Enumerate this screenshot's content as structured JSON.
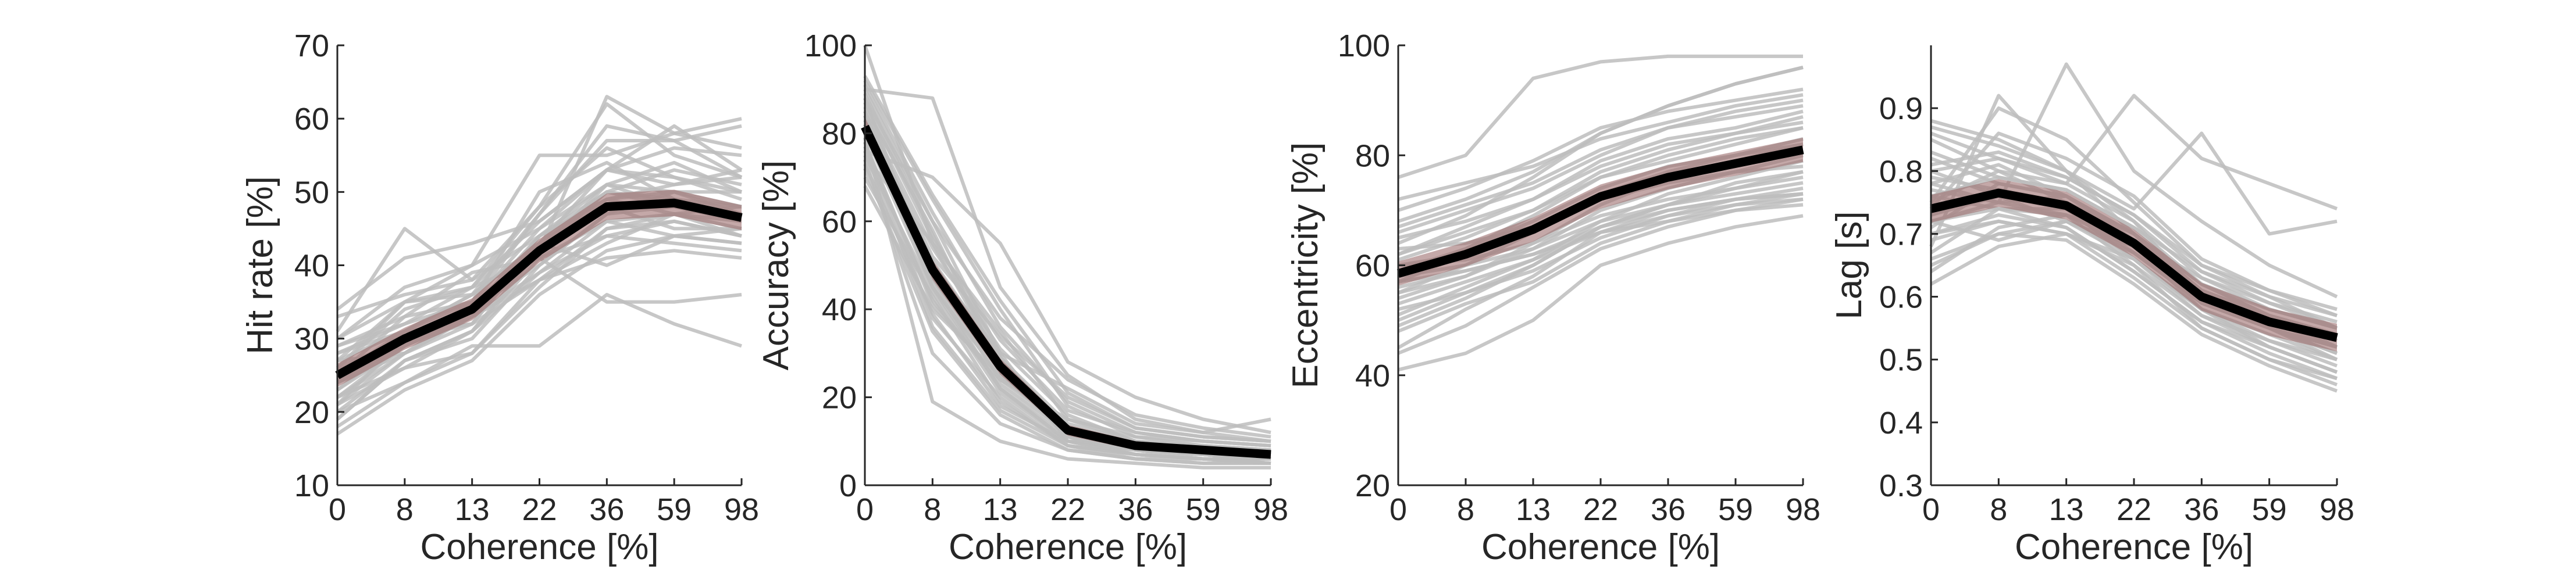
{
  "colors": {
    "subject_lines": "#bdbdbd",
    "mean_line": "#000000",
    "error_band": "#9c6e6e",
    "axis": "#262626"
  },
  "chart_data": [
    {
      "type": "line",
      "xlabel": "Coherence [%]",
      "ylabel": "Hit rate [%]",
      "categories": [
        "0",
        "8",
        "13",
        "22",
        "36",
        "59",
        "98"
      ],
      "ylim": [
        10,
        70
      ],
      "yticks": [
        10,
        20,
        30,
        40,
        50,
        60,
        70
      ],
      "mean": [
        25,
        30,
        34,
        42,
        48,
        48.5,
        46.5
      ],
      "error": [
        1.6,
        1.5,
        1.5,
        1.6,
        1.8,
        1.8,
        1.7
      ],
      "subjects": [
        [
          20,
          27,
          30,
          40,
          47,
          50,
          50
        ],
        [
          22,
          29,
          33,
          44,
          51,
          50,
          48
        ],
        [
          27,
          31,
          36,
          43,
          49,
          50,
          47
        ],
        [
          30,
          35,
          37,
          48,
          56,
          52,
          50
        ],
        [
          18,
          24,
          28,
          37,
          45,
          47,
          45
        ],
        [
          24,
          31,
          35,
          47,
          59,
          57,
          52
        ],
        [
          21,
          26,
          31,
          39,
          46,
          44,
          43
        ],
        [
          28,
          32,
          37,
          41,
          44,
          46,
          44
        ],
        [
          26,
          30,
          33,
          38,
          43,
          47,
          48
        ],
        [
          23,
          29,
          35,
          45,
          53,
          56,
          55
        ],
        [
          19,
          27,
          31,
          42,
          50,
          49,
          47
        ],
        [
          25,
          31,
          32,
          44,
          50,
          53,
          51
        ],
        [
          29,
          33,
          35,
          42,
          48,
          45,
          45
        ],
        [
          22,
          28,
          34,
          40,
          47,
          48,
          46
        ],
        [
          30,
          37,
          40,
          45,
          51,
          48,
          46
        ],
        [
          26,
          34,
          37,
          46,
          53,
          52,
          49
        ],
        [
          24,
          28,
          33,
          39,
          44,
          43,
          42
        ],
        [
          33,
          36,
          38,
          44,
          49,
          47,
          44
        ],
        [
          17,
          23,
          27,
          36,
          42,
          44,
          43
        ],
        [
          31,
          45,
          38,
          48,
          62,
          55,
          52
        ],
        [
          21,
          30,
          34,
          43,
          50,
          48,
          47
        ],
        [
          28,
          31,
          36,
          47,
          57,
          57,
          59
        ],
        [
          20,
          24,
          29,
          29,
          36,
          32,
          29
        ],
        [
          25,
          33,
          39,
          41,
          35,
          35,
          36
        ],
        [
          24,
          29,
          33,
          42,
          63,
          58,
          56
        ],
        [
          27,
          35,
          36,
          43,
          53,
          59,
          53
        ],
        [
          23,
          30,
          32,
          43,
          40,
          44,
          45
        ],
        [
          19,
          27,
          31,
          41,
          46,
          47,
          46
        ],
        [
          29,
          32,
          35,
          50,
          54,
          49,
          48
        ],
        [
          26,
          35,
          40,
          55,
          55,
          58,
          60
        ],
        [
          22,
          26,
          28,
          38,
          41,
          42,
          41
        ],
        [
          34,
          41,
          43,
          46,
          53,
          51,
          53
        ],
        [
          24,
          30,
          34,
          44,
          49,
          51,
          52
        ],
        [
          27,
          28,
          32,
          38,
          45,
          46,
          44
        ],
        [
          21,
          28,
          33,
          42,
          51,
          54,
          50
        ]
      ]
    },
    {
      "type": "line",
      "xlabel": "Coherence [%]",
      "ylabel": "Accuracy [%]",
      "categories": [
        "0",
        "8",
        "13",
        "22",
        "36",
        "59",
        "98"
      ],
      "ylim": [
        0,
        100
      ],
      "yticks": [
        0,
        20,
        40,
        60,
        80,
        100
      ],
      "mean": [
        81.5,
        49,
        27,
        12.5,
        9,
        8,
        7
      ],
      "error": [
        2.2,
        2.2,
        1.8,
        1.2,
        1,
        0.8,
        0.8
      ],
      "subjects": [
        [
          82,
          45,
          25,
          12,
          8,
          7,
          6
        ],
        [
          75,
          55,
          35,
          15,
          10,
          8,
          8
        ],
        [
          90,
          60,
          30,
          10,
          9,
          7,
          6
        ],
        [
          68,
          40,
          25,
          13,
          8,
          7,
          7
        ],
        [
          85,
          50,
          26,
          11,
          8,
          6,
          6
        ],
        [
          92,
          65,
          40,
          18,
          11,
          9,
          8
        ],
        [
          78,
          38,
          20,
          9,
          7,
          6,
          5
        ],
        [
          100,
          55,
          28,
          12,
          9,
          8,
          7
        ],
        [
          88,
          47,
          24,
          15,
          11,
          10,
          9
        ],
        [
          72,
          35,
          16,
          8,
          6,
          5,
          5
        ],
        [
          84,
          52,
          34,
          20,
          13,
          11,
          10
        ],
        [
          80,
          45,
          22,
          10,
          7,
          6,
          6
        ],
        [
          76,
          70,
          55,
          28,
          20,
          15,
          12
        ],
        [
          86,
          58,
          27,
          11,
          8,
          7,
          6
        ],
        [
          74,
          30,
          14,
          8,
          6,
          5,
          5
        ],
        [
          90,
          88,
          45,
          25,
          15,
          12,
          10
        ],
        [
          82,
          48,
          27,
          13,
          9,
          8,
          7
        ],
        [
          70,
          43,
          19,
          9,
          6,
          6,
          5
        ],
        [
          87,
          56,
          33,
          17,
          12,
          10,
          9
        ],
        [
          79,
          19,
          10,
          6,
          5,
          4,
          4
        ],
        [
          83,
          51,
          29,
          14,
          10,
          9,
          8
        ],
        [
          77,
          42,
          23,
          12,
          8,
          7,
          6
        ],
        [
          91,
          62,
          36,
          19,
          12,
          10,
          9
        ],
        [
          81,
          46,
          22,
          11,
          7,
          6,
          5
        ],
        [
          85,
          54,
          31,
          16,
          10,
          8,
          7
        ],
        [
          73,
          39,
          18,
          10,
          7,
          6,
          6
        ],
        [
          89,
          57,
          29,
          13,
          9,
          8,
          7
        ],
        [
          80,
          50,
          30,
          22,
          14,
          12,
          15
        ],
        [
          75,
          44,
          21,
          10,
          8,
          7,
          6
        ],
        [
          88,
          60,
          38,
          24,
          16,
          13,
          11
        ],
        [
          84,
          47,
          26,
          12,
          9,
          7,
          6
        ],
        [
          78,
          41,
          24,
          13,
          10,
          8,
          7
        ],
        [
          93,
          66,
          42,
          21,
          13,
          11,
          10
        ],
        [
          76,
          36,
          17,
          9,
          7,
          6,
          5
        ]
      ]
    },
    {
      "type": "line",
      "xlabel": "Coherence [%]",
      "ylabel": "Eccentricity [%]",
      "categories": [
        "0",
        "8",
        "13",
        "22",
        "36",
        "59",
        "98"
      ],
      "ylim": [
        20,
        100
      ],
      "yticks": [
        20,
        40,
        60,
        80,
        100
      ],
      "mean": [
        58.5,
        62,
        66.5,
        72.5,
        76,
        78.5,
        81
      ],
      "error": [
        2.2,
        2.2,
        2.2,
        2.2,
        2.2,
        2.2,
        2.2
      ],
      "subjects": [
        [
          41,
          44,
          50,
          60,
          64,
          67,
          69
        ],
        [
          45,
          52,
          58,
          66,
          70,
          72,
          73
        ],
        [
          50,
          55,
          60,
          67,
          71,
          75,
          77
        ],
        [
          55,
          58,
          63,
          70,
          74,
          77,
          80
        ],
        [
          60,
          62,
          66,
          72,
          76,
          79,
          82
        ],
        [
          62,
          66,
          70,
          76,
          79,
          82,
          85
        ],
        [
          65,
          68,
          72,
          78,
          82,
          84,
          86
        ],
        [
          70,
          74,
          79,
          85,
          88,
          90,
          92
        ],
        [
          76,
          80,
          94,
          97,
          98,
          98,
          98
        ],
        [
          68,
          72,
          77,
          84,
          89,
          93,
          96
        ],
        [
          58,
          60,
          63,
          68,
          71,
          73,
          75
        ],
        [
          53,
          57,
          61,
          66,
          69,
          72,
          74
        ],
        [
          48,
          53,
          57,
          64,
          68,
          71,
          73
        ],
        [
          57,
          62,
          67,
          73,
          76,
          79,
          81
        ],
        [
          63,
          64,
          67,
          72,
          75,
          77,
          78
        ],
        [
          59,
          63,
          69,
          76,
          80,
          83,
          85
        ],
        [
          52,
          55,
          59,
          65,
          69,
          71,
          72
        ],
        [
          66,
          70,
          74,
          80,
          85,
          88,
          90
        ],
        [
          56,
          59,
          62,
          67,
          70,
          72,
          73
        ],
        [
          61,
          65,
          70,
          77,
          81,
          84,
          87
        ],
        [
          44,
          49,
          56,
          63,
          67,
          70,
          72
        ],
        [
          64,
          69,
          76,
          84,
          89,
          93,
          96
        ],
        [
          54,
          58,
          64,
          71,
          76,
          79,
          81
        ],
        [
          60,
          61,
          64,
          69,
          72,
          74,
          76
        ],
        [
          58,
          63,
          68,
          74,
          78,
          80,
          83
        ],
        [
          51,
          56,
          61,
          68,
          73,
          76,
          79
        ],
        [
          67,
          71,
          75,
          81,
          85,
          87,
          89
        ],
        [
          55,
          60,
          66,
          73,
          77,
          80,
          82
        ],
        [
          62,
          67,
          72,
          79,
          83,
          85,
          88
        ],
        [
          49,
          54,
          60,
          67,
          71,
          74,
          77
        ],
        [
          57,
          59,
          62,
          66,
          68,
          70,
          71
        ],
        [
          72,
          75,
          78,
          83,
          86,
          89,
          91
        ]
      ]
    },
    {
      "type": "line",
      "xlabel": "Coherence [%]",
      "ylabel": "Lag [s]",
      "categories": [
        "0",
        "8",
        "13",
        "22",
        "36",
        "59",
        "98"
      ],
      "ylim": [
        0.3,
        1.0
      ],
      "yticks": [
        0.3,
        0.4,
        0.5,
        0.6,
        0.7,
        0.8,
        0.9
      ],
      "mean": [
        0.74,
        0.765,
        0.745,
        0.685,
        0.6,
        0.56,
        0.535
      ],
      "error": [
        0.022,
        0.022,
        0.022,
        0.022,
        0.022,
        0.022,
        0.022
      ],
      "subjects": [
        [
          0.88,
          0.85,
          0.8,
          0.72,
          0.6,
          0.55,
          0.5
        ],
        [
          0.82,
          0.78,
          0.76,
          0.7,
          0.62,
          0.57,
          0.52
        ],
        [
          0.75,
          0.9,
          0.85,
          0.75,
          0.65,
          0.6,
          0.55
        ],
        [
          0.7,
          0.72,
          0.7,
          0.65,
          0.55,
          0.5,
          0.47
        ],
        [
          0.78,
          0.75,
          0.97,
          0.8,
          0.72,
          0.65,
          0.6
        ],
        [
          0.65,
          0.7,
          0.72,
          0.68,
          0.58,
          0.52,
          0.48
        ],
        [
          0.8,
          0.82,
          0.78,
          0.92,
          0.82,
          0.78,
          0.74
        ],
        [
          0.73,
          0.76,
          0.74,
          0.66,
          0.58,
          0.53,
          0.5
        ],
        [
          0.68,
          0.92,
          0.8,
          0.7,
          0.6,
          0.55,
          0.52
        ],
        [
          0.85,
          0.8,
          0.75,
          0.68,
          0.6,
          0.56,
          0.53
        ],
        [
          0.72,
          0.74,
          0.73,
          0.69,
          0.63,
          0.58,
          0.55
        ],
        [
          0.76,
          0.79,
          0.77,
          0.71,
          0.62,
          0.57,
          0.54
        ],
        [
          0.62,
          0.68,
          0.7,
          0.66,
          0.57,
          0.52,
          0.48
        ],
        [
          0.79,
          0.77,
          0.74,
          0.67,
          0.59,
          0.55,
          0.51
        ],
        [
          0.74,
          0.86,
          0.82,
          0.76,
          0.66,
          0.61,
          0.57
        ],
        [
          0.7,
          0.73,
          0.71,
          0.64,
          0.56,
          0.51,
          0.47
        ],
        [
          0.87,
          0.84,
          0.8,
          0.74,
          0.86,
          0.7,
          0.72
        ],
        [
          0.77,
          0.75,
          0.76,
          0.7,
          0.61,
          0.57,
          0.53
        ],
        [
          0.66,
          0.7,
          0.69,
          0.62,
          0.54,
          0.49,
          0.45
        ],
        [
          0.81,
          0.83,
          0.79,
          0.73,
          0.64,
          0.59,
          0.56
        ],
        [
          0.72,
          0.69,
          0.72,
          0.67,
          0.59,
          0.55,
          0.52
        ],
        [
          0.75,
          0.8,
          0.78,
          0.72,
          0.63,
          0.59,
          0.55
        ],
        [
          0.69,
          0.72,
          0.7,
          0.63,
          0.55,
          0.5,
          0.46
        ],
        [
          0.78,
          0.81,
          0.76,
          0.69,
          0.6,
          0.56,
          0.52
        ],
        [
          0.73,
          0.77,
          0.75,
          0.7,
          0.61,
          0.57,
          0.54
        ],
        [
          0.83,
          0.79,
          0.77,
          0.71,
          0.64,
          0.6,
          0.57
        ],
        [
          0.64,
          0.71,
          0.73,
          0.65,
          0.57,
          0.53,
          0.49
        ],
        [
          0.76,
          0.74,
          0.74,
          0.68,
          0.6,
          0.55,
          0.51
        ],
        [
          0.71,
          0.78,
          0.76,
          0.7,
          0.62,
          0.58,
          0.55
        ],
        [
          0.8,
          0.76,
          0.72,
          0.66,
          0.58,
          0.54,
          0.5
        ],
        [
          0.67,
          0.74,
          0.71,
          0.64,
          0.56,
          0.52,
          0.48
        ],
        [
          0.86,
          0.82,
          0.79,
          0.73,
          0.65,
          0.61,
          0.58
        ],
        [
          0.72,
          0.75,
          0.73,
          0.68,
          0.59,
          0.55,
          0.51
        ]
      ]
    }
  ]
}
